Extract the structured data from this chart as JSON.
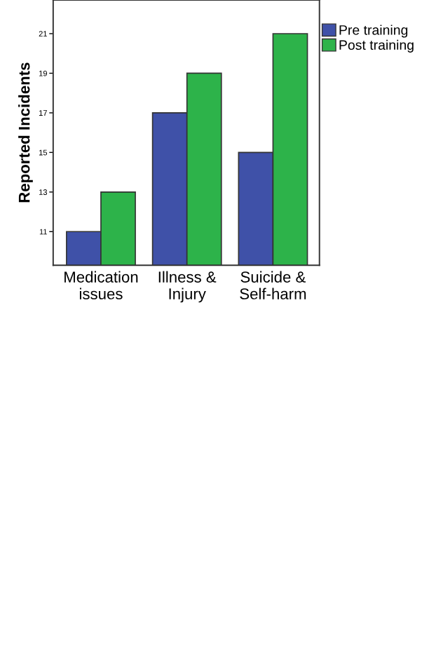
{
  "chart_data": {
    "type": "bar",
    "ylabel": "Reported Incidents",
    "categories": [
      "Medication\nissues",
      "Illness &\nInjury",
      "Suicide &\nSelf-harm"
    ],
    "series": [
      {
        "name": "Pre training",
        "color": "#3f51a8",
        "values": [
          11,
          17,
          15
        ]
      },
      {
        "name": "Post training",
        "color": "#2db34a",
        "values": [
          13,
          19,
          21
        ]
      }
    ],
    "ylim": [
      9.3,
      22.7
    ],
    "yticks": [
      11,
      13,
      15,
      17,
      19,
      21
    ],
    "grid": false,
    "legend": "top right"
  }
}
